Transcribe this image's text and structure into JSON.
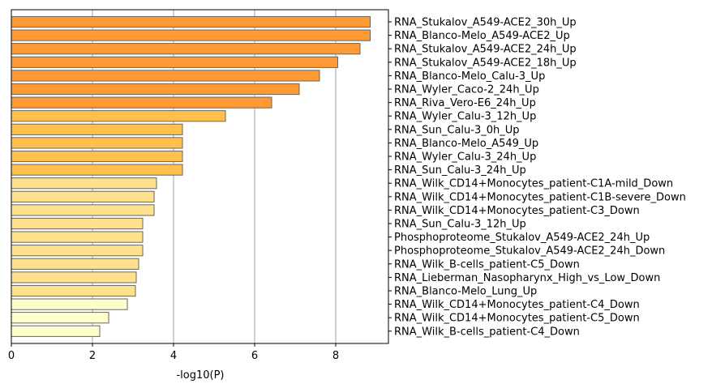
{
  "chart_data": {
    "type": "bar",
    "orientation": "horizontal",
    "title": "",
    "xlabel": "-log10(P)",
    "ylabel": "",
    "xlim": [
      0,
      9.3
    ],
    "xticks": [
      0,
      2,
      4,
      6,
      8
    ],
    "grid": "vertical",
    "categories": [
      "RNA_Stukalov_A549-ACE2_30h_Up",
      "RNA_Blanco-Melo_A549-ACE2_Up",
      "RNA_Stukalov_A549-ACE2_24h_Up",
      "RNA_Stukalov_A549-ACE2_18h_Up",
      "RNA_Blanco-Melo_Calu-3_Up",
      "RNA_Wyler_Caco-2_24h_Up",
      "RNA_Riva_Vero-E6_24h_Up",
      "RNA_Wyler_Calu-3_12h_Up",
      "RNA_Sun_Calu-3_0h_Up",
      "RNA_Blanco-Melo_A549_Up",
      "RNA_Wyler_Calu-3_24h_Up",
      "RNA_Sun_Calu-3_24h_Up",
      "RNA_Wilk_CD14+Monocytes_patient-C1A-mild_Down",
      "RNA_Wilk_CD14+Monocytes_patient-C1B-severe_Down",
      "RNA_Wilk_CD14+Monocytes_patient-C3_Down",
      "RNA_Sun_Calu-3_12h_Up",
      "Phosphoproteome_Stukalov_A549-ACE2_24h_Up",
      "Phosphoproteome_Stukalov_A549-ACE2_24h_Down",
      "RNA_Wilk_B-cells_patient-C5_Down",
      "RNA_Lieberman_Nasopharynx_High_vs_Low_Down",
      "RNA_Blanco-Melo_Lung_Up",
      "RNA_Wilk_CD14+Monocytes_patient-C4_Down",
      "RNA_Wilk_CD14+Monocytes_patient-C5_Down",
      "RNA_Wilk_B-cells_patient-C4_Down"
    ],
    "values": [
      8.85,
      8.85,
      8.6,
      8.05,
      7.6,
      7.1,
      6.42,
      5.28,
      4.22,
      4.22,
      4.22,
      4.22,
      3.58,
      3.52,
      3.52,
      3.24,
      3.24,
      3.24,
      3.14,
      3.08,
      3.06,
      2.86,
      2.4,
      2.18
    ],
    "colors": [
      "#FF9933",
      "#FF9933",
      "#FF9933",
      "#FF9933",
      "#FF9933",
      "#FF9933",
      "#FF9933",
      "#FFC04C",
      "#FFC04C",
      "#FFC04C",
      "#FFC04C",
      "#FFC04C",
      "#FFE08C",
      "#FFE08C",
      "#FFE08C",
      "#FFE08C",
      "#FFE08C",
      "#FFE08C",
      "#FFE08C",
      "#FFE08C",
      "#FFE08C",
      "#FFFFCC",
      "#FFFFCC",
      "#FFFFCC"
    ],
    "bar_edge_color": "#666666",
    "grid_color": "#b0b0b0"
  }
}
